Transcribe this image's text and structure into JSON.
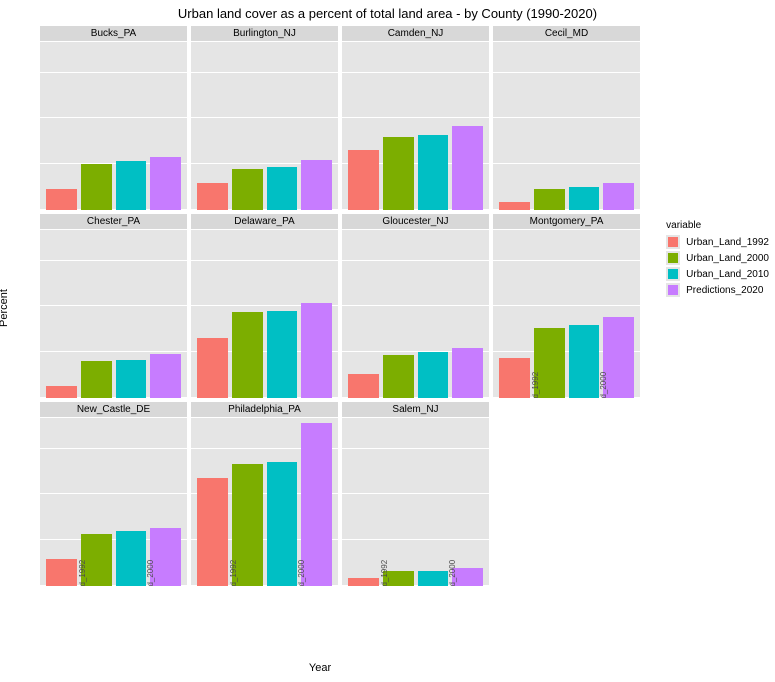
{
  "title": "Urban land cover as a percent of total land area - by County (1990-2020)",
  "y_label": "Percent",
  "x_label": "Year",
  "legend_title": "variable",
  "ylim": [
    0,
    1.1
  ],
  "y_ticks": [
    0.0,
    0.3,
    0.6,
    0.9
  ],
  "grid_color": "#ffffff",
  "panel_bg": "#e5e5e5",
  "strip_bg": "#d8d8d8",
  "categories": [
    "Urban_Land_1992",
    "Urban_Land_2000",
    "Urban_Land_2010",
    "Predictions_2020"
  ],
  "colors": [
    "#f8766d",
    "#7cae00",
    "#00bfc4",
    "#c77cff"
  ],
  "panels": [
    {
      "name": "Bucks_PA",
      "values": [
        0.14,
        0.3,
        0.32,
        0.35
      ]
    },
    {
      "name": "Burlington_NJ",
      "values": [
        0.18,
        0.27,
        0.28,
        0.33
      ]
    },
    {
      "name": "Camden_NJ",
      "values": [
        0.39,
        0.48,
        0.49,
        0.55
      ]
    },
    {
      "name": "Cecil_MD",
      "values": [
        0.05,
        0.14,
        0.15,
        0.18
      ]
    },
    {
      "name": "Chester_PA",
      "values": [
        0.08,
        0.24,
        0.25,
        0.29
      ]
    },
    {
      "name": "Delaware_PA",
      "values": [
        0.39,
        0.56,
        0.57,
        0.62
      ]
    },
    {
      "name": "Gloucester_NJ",
      "values": [
        0.16,
        0.28,
        0.3,
        0.33
      ]
    },
    {
      "name": "Montgomery_PA",
      "values": [
        0.26,
        0.46,
        0.48,
        0.53
      ]
    },
    {
      "name": "New_Castle_DE",
      "values": [
        0.18,
        0.34,
        0.36,
        0.38
      ]
    },
    {
      "name": "Philadelphia_PA",
      "values": [
        0.71,
        0.8,
        0.81,
        1.07
      ]
    },
    {
      "name": "Salem_NJ",
      "values": [
        0.05,
        0.1,
        0.1,
        0.12
      ]
    }
  ]
}
